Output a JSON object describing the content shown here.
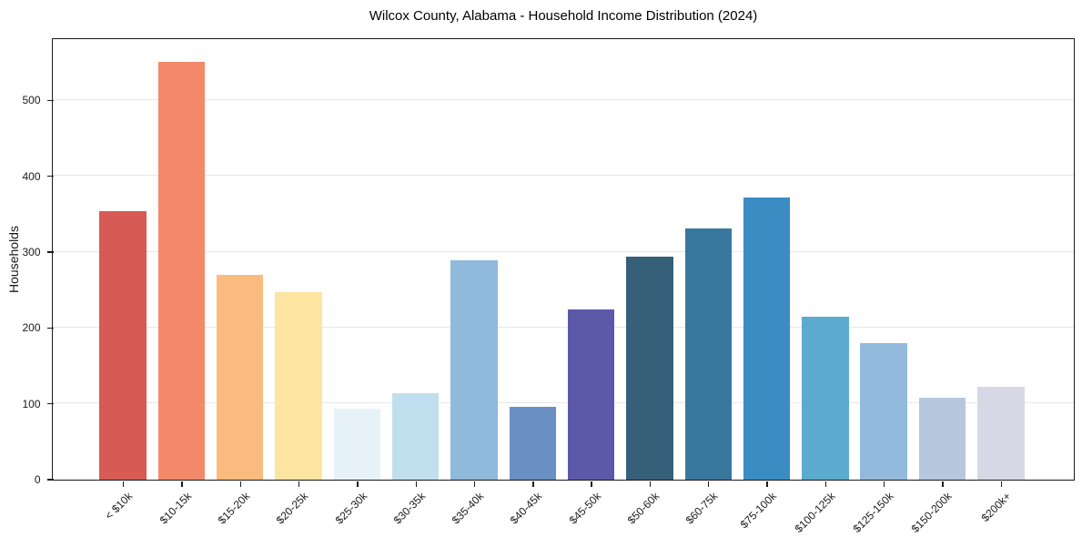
{
  "chart_data": {
    "type": "bar",
    "title": "Wilcox County, Alabama - Household Income Distribution (2024)",
    "xlabel": "",
    "ylabel": "Households",
    "categories": [
      "< $10k",
      "$10-15k",
      "$15-20k",
      "$20-25k",
      "$25-30k",
      "$30-35k",
      "$35-40k",
      "$40-45k",
      "$45-50k",
      "$50-60k",
      "$60-75k",
      "$75-100k",
      "$100-125k",
      "$125-150k",
      "$150-200k",
      "$200k+"
    ],
    "values": [
      353,
      551,
      270,
      247,
      93,
      114,
      289,
      96,
      224,
      293,
      331,
      372,
      214,
      179,
      108,
      122
    ],
    "bar_colors": [
      "#d75b54",
      "#f3896a",
      "#fabc7e",
      "#fde5a1",
      "#e7f2f8",
      "#c0dfee",
      "#90badc",
      "#6a90c3",
      "#5c59a8",
      "#36607a",
      "#39789e",
      "#3a8cc3",
      "#5caace",
      "#93b9dc",
      "#b6c8dd",
      "#d7d8e6"
    ],
    "yticks": [
      0,
      100,
      200,
      300,
      400,
      500
    ],
    "ylim": [
      0,
      581
    ],
    "grid": "horizontal",
    "legend": "none",
    "tick_rotation_deg": 45
  },
  "colors": {
    "background": "#ffffff",
    "axis": "#1a1a1a",
    "gridline": "#e7e7e7",
    "text": "#1a1a1a"
  }
}
